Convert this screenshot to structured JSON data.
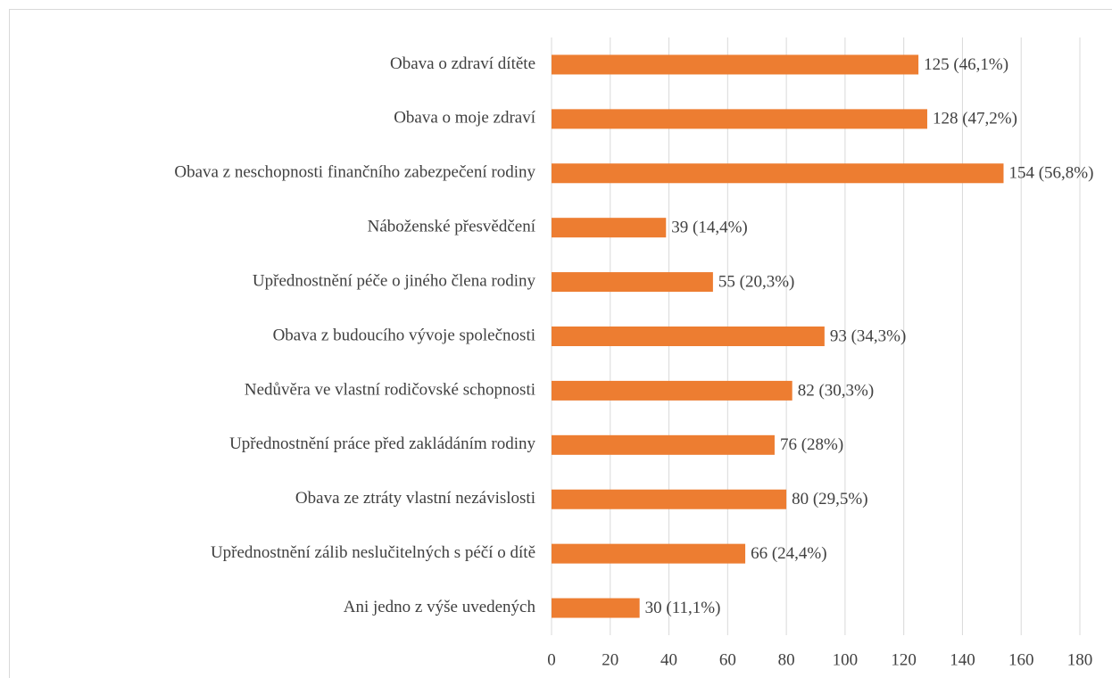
{
  "chart_data": {
    "type": "barh",
    "categories": [
      "Obava o zdraví dítěte",
      "Obava o moje zdraví",
      "Obava z neschopnosti finančního zabezpečení rodiny",
      "Náboženské přesvědčení",
      "Upřednostnění péče o jiného člena rodiny",
      "Obava z budoucího vývoje společnosti",
      "Nedůvěra ve vlastní rodičovské schopnosti",
      "Upřednostnění práce před zakládáním rodiny",
      "Obava ze ztráty vlastní nezávislosti",
      "Upřednostnění zálib neslučitelných s péčí o dítě",
      "Ani jedno z výše uvedených"
    ],
    "values": [
      125,
      128,
      154,
      39,
      55,
      93,
      82,
      76,
      80,
      66,
      30
    ],
    "value_labels": [
      "125 (46,1%)",
      "128 (47,2%)",
      "154 (56,8%)",
      "39 (14,4%)",
      "55 (20,3%)",
      "93 (34,3%)",
      "82 (30,3%)",
      "76 (28%)",
      "80 (29,5%)",
      "66 (24,4%)",
      "30 (11,1%)"
    ],
    "color": "#ed7d31",
    "xlim": [
      0,
      180
    ],
    "xticks": [
      0,
      20,
      40,
      60,
      80,
      100,
      120,
      140,
      160,
      180
    ],
    "grid": true
  }
}
